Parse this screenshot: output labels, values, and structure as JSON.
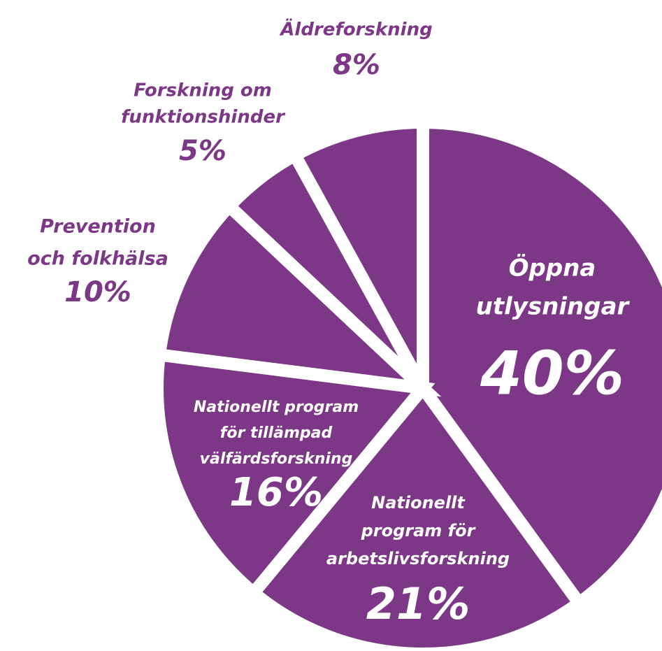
{
  "chart_data": {
    "type": "pie",
    "color": "#7d3787",
    "categories": [
      [
        "Öppna",
        "utlysningar"
      ],
      [
        "Nationellt",
        "program för",
        "arbetslivsforskning"
      ],
      [
        "Nationellt program",
        "för tillämpad",
        "välfärdsforskning"
      ],
      [
        "Prevention",
        "och folkhälsa"
      ],
      [
        "Forskning om",
        "funktionshinder"
      ],
      [
        "Äldreforskning"
      ]
    ],
    "values": [
      40,
      21,
      16,
      10,
      5,
      8
    ],
    "value_labels": [
      "40%",
      "21%",
      "16%",
      "10%",
      "5%",
      "8%"
    ]
  }
}
